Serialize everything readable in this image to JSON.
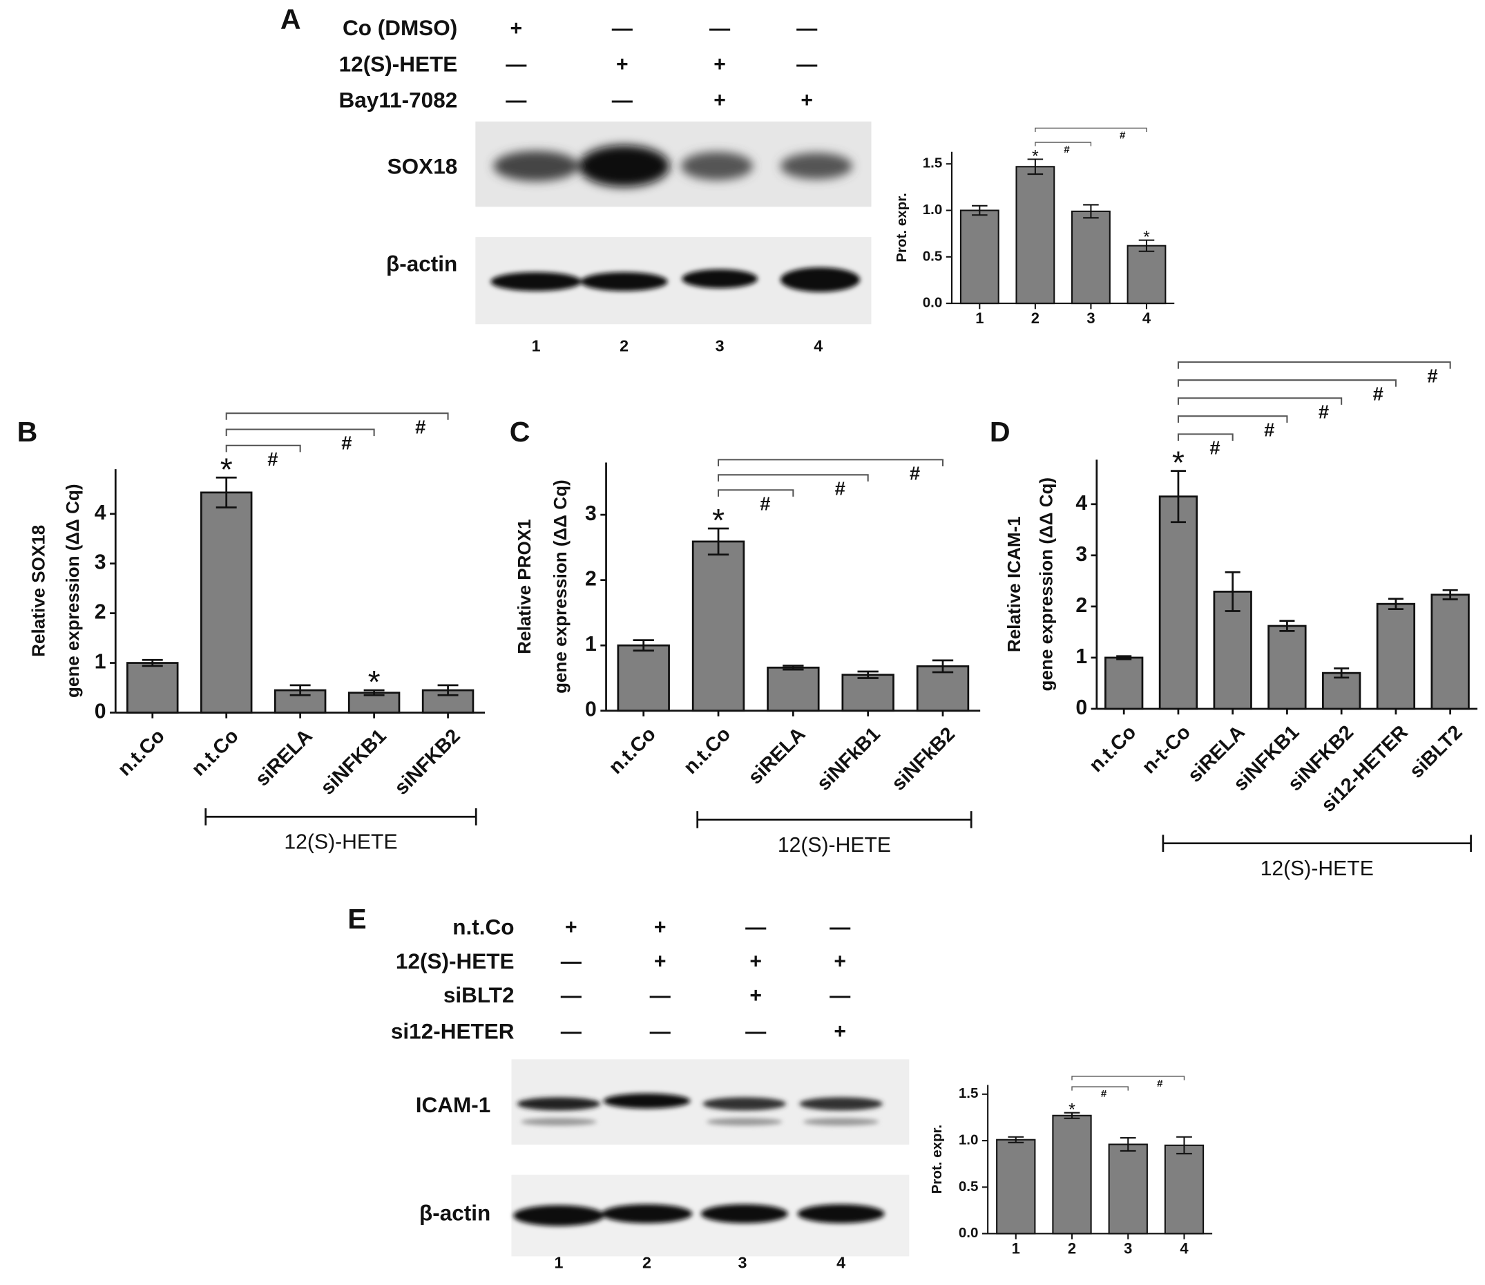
{
  "panel_labels": [
    "A",
    "B",
    "C",
    "D",
    "E"
  ],
  "blot_A": {
    "conditions": [
      {
        "name": "Co (DMSO)",
        "signs": [
          "+",
          "—",
          "—",
          "—"
        ]
      },
      {
        "name": "12(S)-HETE",
        "signs": [
          "—",
          "+",
          "+",
          "—"
        ]
      },
      {
        "name": "Bay11-7082",
        "signs": [
          "—",
          "—",
          "+",
          "+"
        ]
      }
    ],
    "proteins": [
      "SOX18",
      "β-actin"
    ],
    "lanes": [
      "1",
      "2",
      "3",
      "4"
    ]
  },
  "blot_E": {
    "conditions": [
      {
        "name": "n.t.Co",
        "signs": [
          "+",
          "+",
          "—",
          "—"
        ]
      },
      {
        "name": "12(S)-HETE",
        "signs": [
          "—",
          "+",
          "+",
          "+"
        ]
      },
      {
        "name": "siBLT2",
        "signs": [
          "—",
          "—",
          "+",
          "—"
        ]
      },
      {
        "name": "si12-HETER",
        "signs": [
          "—",
          "—",
          "—",
          "+"
        ]
      }
    ],
    "proteins": [
      "ICAM-1",
      "β-actin"
    ],
    "lanes": [
      "1",
      "2",
      "3",
      "4"
    ]
  },
  "chart_data": [
    {
      "type": "bar",
      "ylabel": [
        "Prot. expr."
      ],
      "color": "#808080",
      "categories": [
        "1",
        "2",
        "3",
        "4"
      ],
      "values": [
        1.0,
        1.47,
        0.99,
        0.62
      ],
      "errors": [
        0.05,
        0.08,
        0.07,
        0.06
      ],
      "ylim": [
        0,
        1.63
      ],
      "yticks": [
        {
          "value": 0,
          "label": "0.0"
        },
        {
          "value": 0.5,
          "label": "0.5"
        },
        {
          "value": 1,
          "label": "1.0"
        },
        {
          "value": 1.5,
          "label": "1.5"
        }
      ],
      "asterisks": [
        {
          "category": 1,
          "label": "*"
        },
        {
          "category": 3,
          "label": "*"
        }
      ],
      "brackets": [
        {
          "from": 1,
          "to": 2,
          "label": "#"
        },
        {
          "from": 1,
          "to": 3,
          "label": "#"
        }
      ]
    },
    {
      "type": "bar",
      "ylabel": [
        "Relative  SOX18",
        "gene expression (ΔΔ Cq)"
      ],
      "color": "#808080",
      "categories": [
        "n.t.Co",
        "n.t.Co",
        "siRELA",
        "siNFKB1",
        "siNFKB2"
      ],
      "values": [
        1.0,
        4.43,
        0.45,
        0.4,
        0.45
      ],
      "errors": [
        0.06,
        0.3,
        0.1,
        0.05,
        0.1
      ],
      "ylim": [
        0,
        4.9
      ],
      "yticks": [
        0,
        1,
        2,
        3,
        4
      ],
      "asterisks": [
        {
          "category": 1,
          "label": "*"
        },
        {
          "category": 3,
          "label": "*"
        }
      ],
      "brackets": [
        {
          "from": 1,
          "to": 2,
          "label": "#"
        },
        {
          "from": 1,
          "to": 3,
          "label": "#"
        },
        {
          "from": 1,
          "to": 4,
          "label": "#"
        }
      ],
      "group": {
        "label": "12(S)-HETE",
        "from": 1,
        "to": 4
      }
    },
    {
      "type": "bar",
      "ylabel": [
        "Relative  PROX1",
        "gene expression (ΔΔ Cq)"
      ],
      "color": "#808080",
      "categories": [
        "n.t.Co",
        "n.t.Co",
        "siRELA",
        "siNFkB1",
        "siNFkB2"
      ],
      "values": [
        1.0,
        2.59,
        0.66,
        0.55,
        0.68
      ],
      "errors": [
        0.08,
        0.2,
        0.03,
        0.05,
        0.09
      ],
      "ylim": [
        0,
        3.8
      ],
      "yticks": [
        0,
        1,
        2,
        3
      ],
      "asterisks": [
        {
          "category": 1,
          "label": "*"
        }
      ],
      "brackets": [
        {
          "from": 1,
          "to": 2,
          "label": "#"
        },
        {
          "from": 1,
          "to": 3,
          "label": "#"
        },
        {
          "from": 1,
          "to": 4,
          "label": "#"
        }
      ],
      "group": {
        "label": "12(S)-HETE",
        "from": 1,
        "to": 4
      }
    },
    {
      "type": "bar",
      "ylabel": [
        "Relative  ICAM-1",
        "gene expression (ΔΔ Cq)"
      ],
      "color": "#808080",
      "categories": [
        "n.t.Co",
        "n-t-Co",
        "siRELA",
        "siNFKB1",
        "siNFKB2",
        "si12-HETER",
        "siBLT2"
      ],
      "values": [
        1.0,
        4.15,
        2.29,
        1.62,
        0.7,
        2.05,
        2.23
      ],
      "errors": [
        0.03,
        0.5,
        0.38,
        0.1,
        0.09,
        0.1,
        0.09
      ],
      "ylim": [
        0,
        4.87
      ],
      "yticks": [
        0,
        1,
        2,
        3,
        4
      ],
      "asterisks": [
        {
          "category": 1,
          "label": "*"
        }
      ],
      "brackets": [
        {
          "from": 1,
          "to": 2,
          "label": "#"
        },
        {
          "from": 1,
          "to": 3,
          "label": "#"
        },
        {
          "from": 1,
          "to": 4,
          "label": "#"
        },
        {
          "from": 1,
          "to": 5,
          "label": "#"
        },
        {
          "from": 1,
          "to": 6,
          "label": "#"
        }
      ],
      "group": {
        "label": "12(S)-HETE",
        "from": 1,
        "to": 6
      }
    },
    {
      "type": "bar",
      "ylabel": [
        "Prot. expr."
      ],
      "color": "#808080",
      "categories": [
        "1",
        "2",
        "3",
        "4"
      ],
      "values": [
        1.01,
        1.27,
        0.96,
        0.95
      ],
      "errors": [
        0.03,
        0.03,
        0.07,
        0.09
      ],
      "ylim": [
        0,
        1.6
      ],
      "yticks": [
        {
          "value": 0,
          "label": "0.0"
        },
        {
          "value": 0.5,
          "label": "0.5"
        },
        {
          "value": 1,
          "label": "1.0"
        },
        {
          "value": 1.5,
          "label": "1.5"
        }
      ],
      "asterisks": [
        {
          "category": 1,
          "label": "*"
        }
      ],
      "brackets": [
        {
          "from": 1,
          "to": 2,
          "label": "#"
        },
        {
          "from": 1,
          "to": 3,
          "label": "#"
        }
      ]
    }
  ]
}
